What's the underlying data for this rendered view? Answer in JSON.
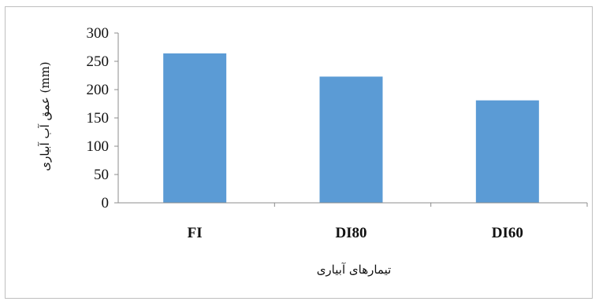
{
  "chart_data": {
    "type": "bar",
    "categories": [
      "FI",
      "DI80",
      "DI60"
    ],
    "values": [
      264,
      223,
      181
    ],
    "title": "",
    "xlabel": "تیمارهای آبیاری",
    "ylabel": "عمق آب آبیاری (mm)",
    "ylim": [
      0,
      300
    ],
    "yticks": [
      0,
      50,
      100,
      150,
      200,
      250,
      300
    ],
    "grid": false,
    "bar_color": "#5b9bd5",
    "axis_color": "#8c8c8c"
  }
}
